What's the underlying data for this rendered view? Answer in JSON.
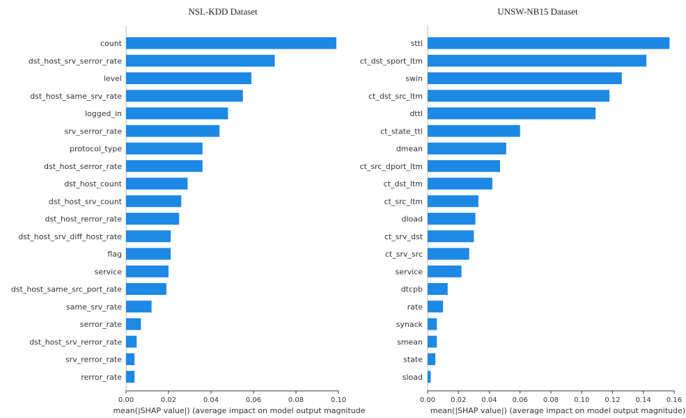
{
  "chart_data": [
    {
      "type": "bar",
      "orientation": "horizontal",
      "title": "NSL-KDD  Dataset",
      "xlabel": "mean(|SHAP value|) (average impact on model output magnitude",
      "xlim": [
        0,
        0.1
      ],
      "xticks": [
        "0.00",
        "0.02",
        "0.04",
        "0.06",
        "0.08",
        "0.10"
      ],
      "bar_color": "#1e88e5",
      "categories": [
        "count",
        "dst_host_srv_serror_rate",
        "level",
        "dst_host_same_srv_rate",
        "logged_in",
        "srv_serror_rate",
        "protocol_type",
        "dst_host_serror_rate",
        "dst_host_count",
        "dst_host_srv_count",
        "dst_host_rerror_rate",
        "dst_host_srv_diff_host_rate",
        "flag",
        "service",
        "dst_host_same_src_port_rate",
        "same_srv_rate",
        "serror_rate",
        "dst_host_srv_rerror_rate",
        "srv_rerror_rate",
        "rerror_rate"
      ],
      "values": [
        0.099,
        0.07,
        0.059,
        0.055,
        0.048,
        0.044,
        0.036,
        0.036,
        0.029,
        0.026,
        0.025,
        0.021,
        0.021,
        0.02,
        0.019,
        0.012,
        0.007,
        0.005,
        0.004,
        0.004
      ]
    },
    {
      "type": "bar",
      "orientation": "horizontal",
      "title": "UNSW-NB15  Dataset",
      "xlabel": "mean(|SHAP value|) (average impact on model output magnitude)",
      "xlim": [
        0,
        0.16
      ],
      "xticks": [
        "0.00",
        "0.02",
        "0.04",
        "0.06",
        "0.08",
        "0.10",
        "0.12",
        "0.14",
        "0.16"
      ],
      "bar_color": "#1e88e5",
      "categories": [
        "sttl",
        "ct_dst_sport_ltm",
        "swin",
        "ct_dst_src_ltm",
        "dttl",
        "ct_state_ttl",
        "dmean",
        "ct_src_dport_ltm",
        "ct_dst_ltm",
        "ct_src_ltm",
        "dload",
        "ct_srv_dst",
        "ct_srv_src",
        "service",
        "dtcpb",
        "rate",
        "synack",
        "smean",
        "state",
        "sload"
      ],
      "values": [
        0.157,
        0.142,
        0.126,
        0.118,
        0.109,
        0.06,
        0.051,
        0.047,
        0.042,
        0.033,
        0.031,
        0.03,
        0.027,
        0.022,
        0.013,
        0.01,
        0.006,
        0.006,
        0.005,
        0.002
      ]
    }
  ]
}
